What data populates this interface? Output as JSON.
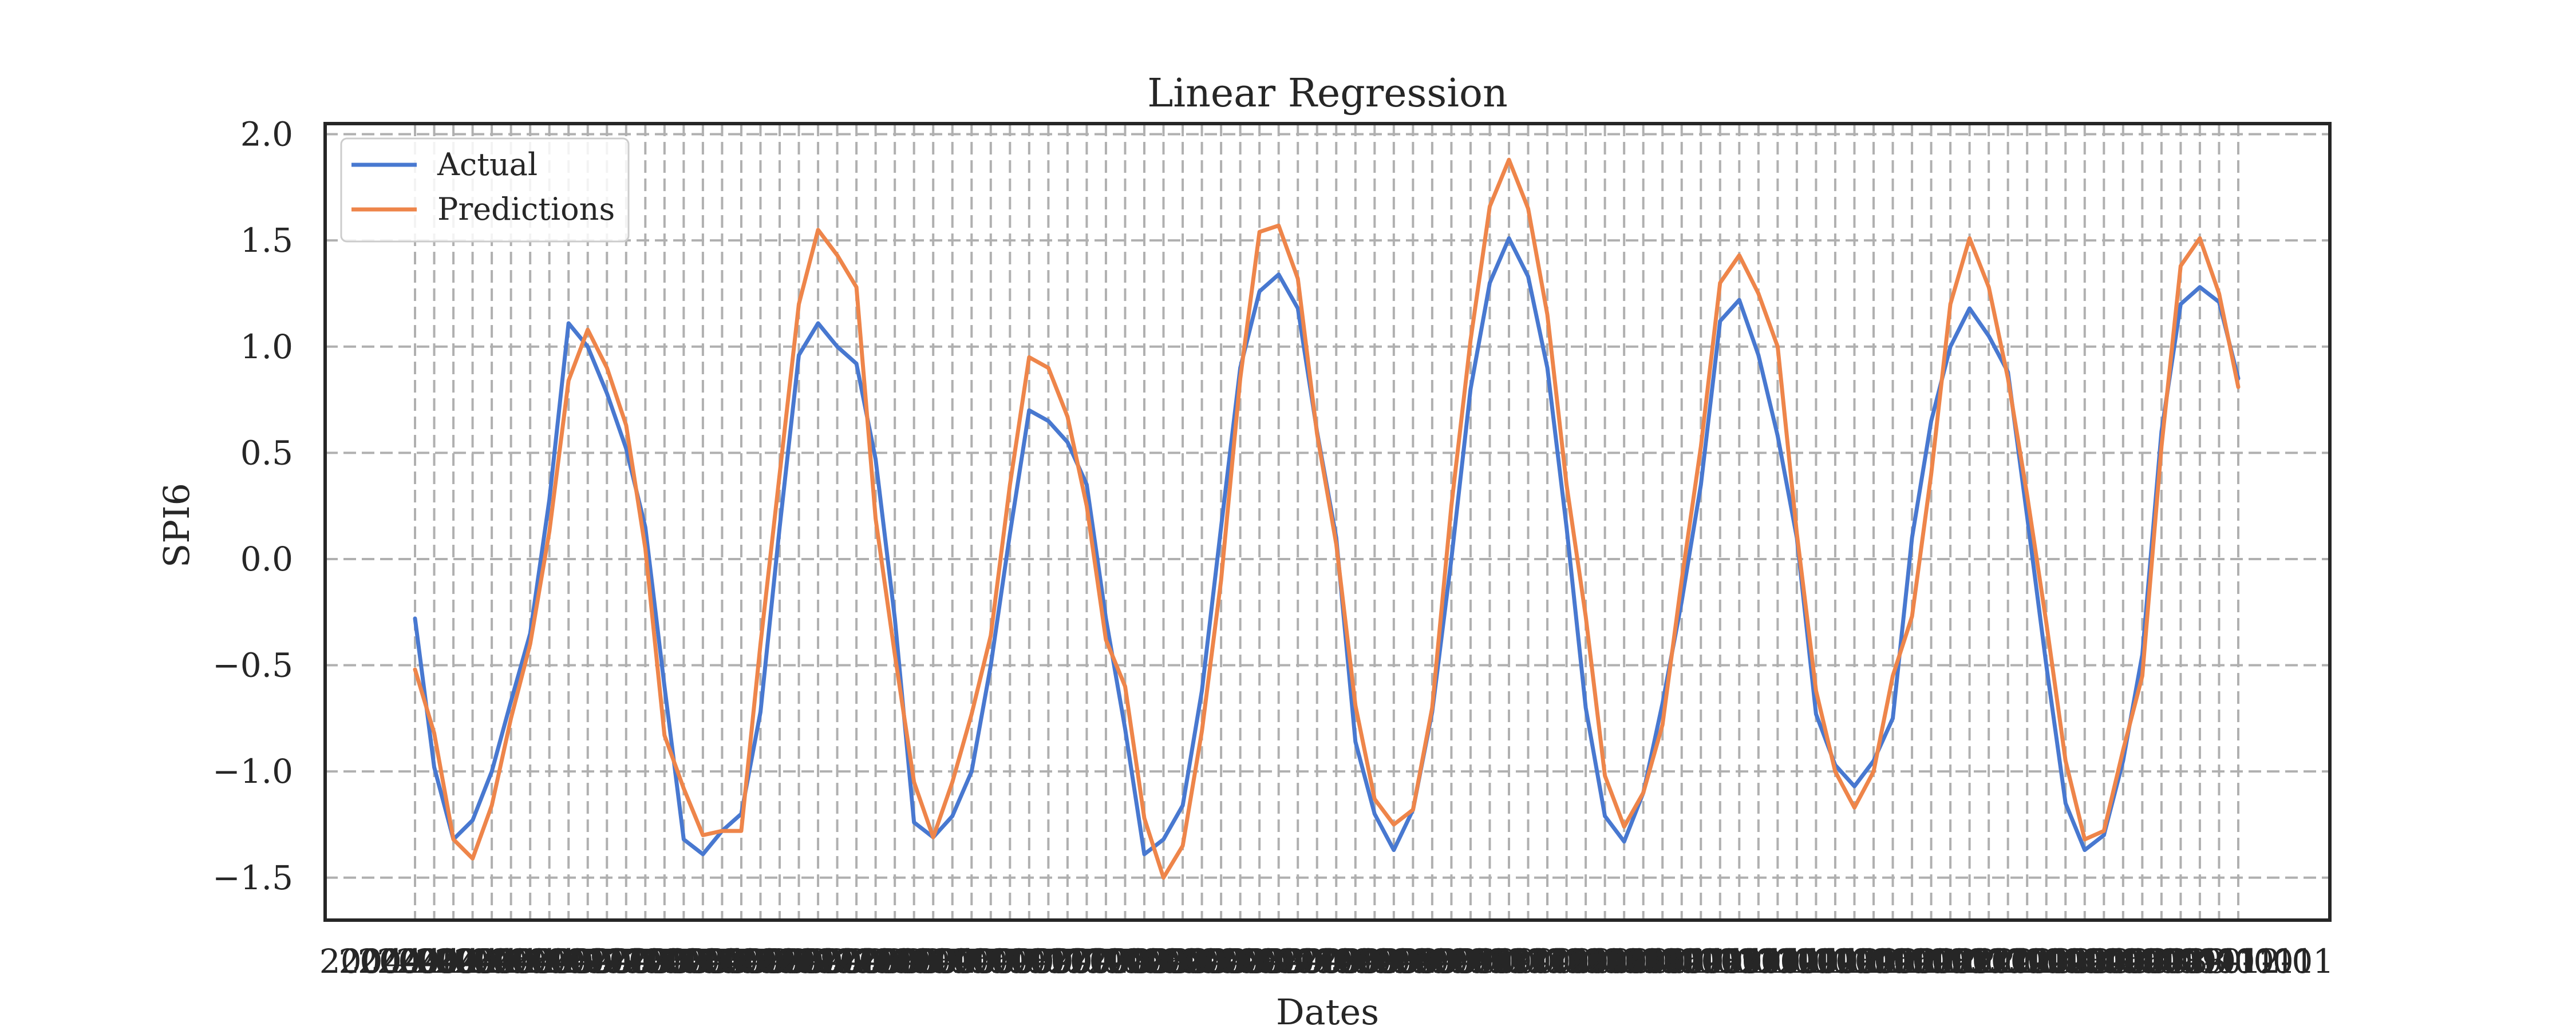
{
  "chart_data": {
    "type": "line",
    "title": "Linear Regression",
    "xlabel": "Dates",
    "ylabel": "SPI6",
    "ylim": [
      -1.7,
      2.05
    ],
    "yticks": [
      2.0,
      1.5,
      1.0,
      0.5,
      0.0,
      -0.5,
      -1.0,
      -1.5
    ],
    "ytick_labels": [
      "2.0",
      "1.5",
      "1.0",
      "0.5",
      "0.0",
      "−0.5",
      "−1.0",
      "−1.5"
    ],
    "grid": true,
    "legend": {
      "position": "top-left",
      "entries": [
        "Actual",
        "Predictions"
      ]
    },
    "x_tick_labels_note": "2004 … 2013 (overlapping date labels)",
    "series": [
      {
        "name": "Actual",
        "color": "#4878d0",
        "values": [
          -0.28,
          -0.98,
          -1.32,
          -1.23,
          -1.0,
          -0.67,
          -0.35,
          0.28,
          1.11,
          1.0,
          0.78,
          0.52,
          0.15,
          -0.6,
          -1.32,
          -1.39,
          -1.28,
          -1.2,
          -0.72,
          0.15,
          0.96,
          1.11,
          1.0,
          0.92,
          0.47,
          -0.28,
          -1.24,
          -1.31,
          -1.21,
          -1.0,
          -0.5,
          0.12,
          0.7,
          0.65,
          0.55,
          0.35,
          -0.28,
          -0.8,
          -1.39,
          -1.32,
          -1.16,
          -0.62,
          0.15,
          0.9,
          1.26,
          1.34,
          1.18,
          0.6,
          0.1,
          -0.86,
          -1.2,
          -1.37,
          -1.18,
          -0.72,
          0.0,
          0.8,
          1.3,
          1.51,
          1.33,
          0.9,
          0.15,
          -0.7,
          -1.21,
          -1.33,
          -1.1,
          -0.68,
          -0.2,
          0.35,
          1.12,
          1.22,
          0.96,
          0.58,
          0.1,
          -0.73,
          -0.97,
          -1.07,
          -0.95,
          -0.75,
          0.1,
          0.65,
          1.0,
          1.18,
          1.05,
          0.88,
          0.2,
          -0.5,
          -1.15,
          -1.37,
          -1.3,
          -0.95,
          -0.45,
          0.6,
          1.2,
          1.28,
          1.21,
          0.85
        ]
      },
      {
        "name": "Predictions",
        "color": "#ee854a",
        "values": [
          -0.52,
          -0.82,
          -1.32,
          -1.41,
          -1.16,
          -0.75,
          -0.4,
          0.13,
          0.84,
          1.08,
          0.9,
          0.63,
          0.05,
          -0.83,
          -1.08,
          -1.3,
          -1.28,
          -1.28,
          -0.4,
          0.4,
          1.2,
          1.55,
          1.43,
          1.28,
          0.19,
          -0.45,
          -1.05,
          -1.31,
          -1.05,
          -0.73,
          -0.36,
          0.35,
          0.95,
          0.9,
          0.67,
          0.25,
          -0.38,
          -0.6,
          -1.22,
          -1.5,
          -1.35,
          -0.81,
          -0.1,
          0.85,
          1.54,
          1.57,
          1.32,
          0.59,
          0.07,
          -0.69,
          -1.13,
          -1.25,
          -1.18,
          -0.7,
          0.25,
          1.03,
          1.66,
          1.88,
          1.65,
          1.15,
          0.35,
          -0.27,
          -1.02,
          -1.26,
          -1.1,
          -0.78,
          -0.1,
          0.53,
          1.3,
          1.43,
          1.25,
          1.0,
          0.12,
          -0.62,
          -1.0,
          -1.17,
          -1.0,
          -0.55,
          -0.27,
          0.4,
          1.2,
          1.51,
          1.28,
          0.85,
          0.3,
          -0.3,
          -0.95,
          -1.32,
          -1.28,
          -0.9,
          -0.55,
          0.53,
          1.38,
          1.51,
          1.25,
          0.81
        ]
      }
    ]
  }
}
